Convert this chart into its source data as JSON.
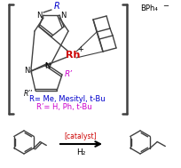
{
  "bg_color": "#ffffff",
  "bracket_color": "#000000",
  "rh_color": "#cc0000",
  "r_color": "#0000cc",
  "rprime_color": "#cc00cc",
  "arrow_color": "#000000",
  "catalyst_color": "#cc0000",
  "line_color": "#404040",
  "text_catalyst": "[catalyst]",
  "text_h2": "H₂",
  "text_r_label": "R= Me, Mesityl, t-Bu",
  "text_rprime_label": "R’= H, Ph, t-Bu",
  "text_bph4": "BPh₄",
  "text_rh": "Rh",
  "text_r": "R",
  "text_rprime": "R’",
  "text_rdprime": "R’’",
  "figsize": [
    2.05,
    1.89
  ],
  "dpi": 100
}
